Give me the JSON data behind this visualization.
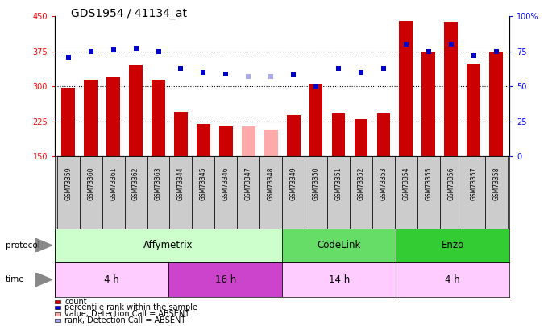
{
  "title": "GDS1954 / 41134_at",
  "samples": [
    "GSM73359",
    "GSM73360",
    "GSM73361",
    "GSM73362",
    "GSM73363",
    "GSM73344",
    "GSM73345",
    "GSM73346",
    "GSM73347",
    "GSM73348",
    "GSM73349",
    "GSM73350",
    "GSM73351",
    "GSM73352",
    "GSM73353",
    "GSM73354",
    "GSM73355",
    "GSM73356",
    "GSM73357",
    "GSM73358"
  ],
  "bar_values": [
    297,
    315,
    320,
    345,
    315,
    245,
    220,
    215,
    null,
    null,
    238,
    305,
    242,
    230,
    242,
    440,
    375,
    438,
    348,
    375
  ],
  "bar_absent": [
    null,
    null,
    null,
    null,
    null,
    null,
    null,
    null,
    215,
    207,
    null,
    null,
    null,
    null,
    null,
    null,
    null,
    null,
    null,
    null
  ],
  "bar_color": "#cc0000",
  "bar_absent_color": "#ffaaaa",
  "dot_values": [
    71,
    75,
    76,
    77,
    75,
    63,
    60,
    59,
    null,
    null,
    58,
    50,
    63,
    60,
    63,
    80,
    75,
    80,
    72,
    75
  ],
  "dot_absent": [
    null,
    null,
    null,
    null,
    null,
    null,
    null,
    null,
    57,
    57,
    null,
    null,
    null,
    null,
    null,
    null,
    null,
    null,
    null,
    null
  ],
  "dot_color": "#0000cc",
  "dot_absent_color": "#aaaaee",
  "ylim_left": [
    150,
    450
  ],
  "ylim_right": [
    0,
    100
  ],
  "yticks_left": [
    150,
    225,
    300,
    375,
    450
  ],
  "yticks_right": [
    0,
    25,
    50,
    75,
    100
  ],
  "ytick_labels_right": [
    "0",
    "25",
    "50",
    "75",
    "100%"
  ],
  "hlines": [
    225,
    300,
    375
  ],
  "protocol_groups": [
    {
      "label": "Affymetrix",
      "start": 0,
      "end": 10,
      "color": "#ccffcc"
    },
    {
      "label": "CodeLink",
      "start": 10,
      "end": 15,
      "color": "#66dd66"
    },
    {
      "label": "Enzo",
      "start": 15,
      "end": 20,
      "color": "#33cc33"
    }
  ],
  "time_groups": [
    {
      "label": "4 h",
      "start": 0,
      "end": 5,
      "color": "#ffccff"
    },
    {
      "label": "16 h",
      "start": 5,
      "end": 10,
      "color": "#cc44cc"
    },
    {
      "label": "14 h",
      "start": 10,
      "end": 15,
      "color": "#ffccff"
    },
    {
      "label": "4 h",
      "start": 15,
      "end": 20,
      "color": "#ffccff"
    }
  ],
  "legend_items": [
    {
      "label": "count",
      "color": "#cc0000"
    },
    {
      "label": "percentile rank within the sample",
      "color": "#0000cc"
    },
    {
      "label": "value, Detection Call = ABSENT",
      "color": "#ffaaaa"
    },
    {
      "label": "rank, Detection Call = ABSENT",
      "color": "#aaaaee"
    }
  ],
  "sample_bg_color": "#cccccc",
  "bg_color": "#ffffff",
  "label_fontsize": 7,
  "tick_fontsize": 7
}
